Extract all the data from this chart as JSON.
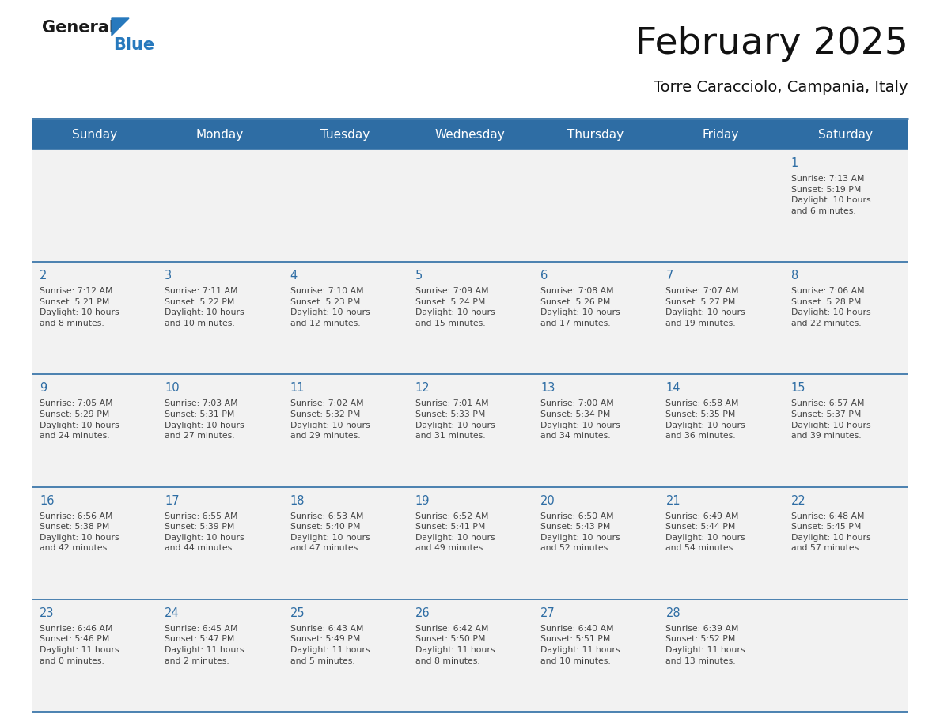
{
  "title": "February 2025",
  "subtitle": "Torre Caracciolo, Campania, Italy",
  "days_of_week": [
    "Sunday",
    "Monday",
    "Tuesday",
    "Wednesday",
    "Thursday",
    "Friday",
    "Saturday"
  ],
  "header_bg": "#2E6DA4",
  "header_text": "#FFFFFF",
  "cell_bg_even": "#F2F2F2",
  "cell_bg_odd": "#FFFFFF",
  "border_color": "#2E6DA4",
  "day_num_color": "#2E6DA4",
  "text_color": "#444444",
  "logo_general_color": "#1a1a1a",
  "logo_blue_color": "#2779BD",
  "weeks": [
    [
      {
        "day": null,
        "info": null
      },
      {
        "day": null,
        "info": null
      },
      {
        "day": null,
        "info": null
      },
      {
        "day": null,
        "info": null
      },
      {
        "day": null,
        "info": null
      },
      {
        "day": null,
        "info": null
      },
      {
        "day": 1,
        "info": "Sunrise: 7:13 AM\nSunset: 5:19 PM\nDaylight: 10 hours\nand 6 minutes."
      }
    ],
    [
      {
        "day": 2,
        "info": "Sunrise: 7:12 AM\nSunset: 5:21 PM\nDaylight: 10 hours\nand 8 minutes."
      },
      {
        "day": 3,
        "info": "Sunrise: 7:11 AM\nSunset: 5:22 PM\nDaylight: 10 hours\nand 10 minutes."
      },
      {
        "day": 4,
        "info": "Sunrise: 7:10 AM\nSunset: 5:23 PM\nDaylight: 10 hours\nand 12 minutes."
      },
      {
        "day": 5,
        "info": "Sunrise: 7:09 AM\nSunset: 5:24 PM\nDaylight: 10 hours\nand 15 minutes."
      },
      {
        "day": 6,
        "info": "Sunrise: 7:08 AM\nSunset: 5:26 PM\nDaylight: 10 hours\nand 17 minutes."
      },
      {
        "day": 7,
        "info": "Sunrise: 7:07 AM\nSunset: 5:27 PM\nDaylight: 10 hours\nand 19 minutes."
      },
      {
        "day": 8,
        "info": "Sunrise: 7:06 AM\nSunset: 5:28 PM\nDaylight: 10 hours\nand 22 minutes."
      }
    ],
    [
      {
        "day": 9,
        "info": "Sunrise: 7:05 AM\nSunset: 5:29 PM\nDaylight: 10 hours\nand 24 minutes."
      },
      {
        "day": 10,
        "info": "Sunrise: 7:03 AM\nSunset: 5:31 PM\nDaylight: 10 hours\nand 27 minutes."
      },
      {
        "day": 11,
        "info": "Sunrise: 7:02 AM\nSunset: 5:32 PM\nDaylight: 10 hours\nand 29 minutes."
      },
      {
        "day": 12,
        "info": "Sunrise: 7:01 AM\nSunset: 5:33 PM\nDaylight: 10 hours\nand 31 minutes."
      },
      {
        "day": 13,
        "info": "Sunrise: 7:00 AM\nSunset: 5:34 PM\nDaylight: 10 hours\nand 34 minutes."
      },
      {
        "day": 14,
        "info": "Sunrise: 6:58 AM\nSunset: 5:35 PM\nDaylight: 10 hours\nand 36 minutes."
      },
      {
        "day": 15,
        "info": "Sunrise: 6:57 AM\nSunset: 5:37 PM\nDaylight: 10 hours\nand 39 minutes."
      }
    ],
    [
      {
        "day": 16,
        "info": "Sunrise: 6:56 AM\nSunset: 5:38 PM\nDaylight: 10 hours\nand 42 minutes."
      },
      {
        "day": 17,
        "info": "Sunrise: 6:55 AM\nSunset: 5:39 PM\nDaylight: 10 hours\nand 44 minutes."
      },
      {
        "day": 18,
        "info": "Sunrise: 6:53 AM\nSunset: 5:40 PM\nDaylight: 10 hours\nand 47 minutes."
      },
      {
        "day": 19,
        "info": "Sunrise: 6:52 AM\nSunset: 5:41 PM\nDaylight: 10 hours\nand 49 minutes."
      },
      {
        "day": 20,
        "info": "Sunrise: 6:50 AM\nSunset: 5:43 PM\nDaylight: 10 hours\nand 52 minutes."
      },
      {
        "day": 21,
        "info": "Sunrise: 6:49 AM\nSunset: 5:44 PM\nDaylight: 10 hours\nand 54 minutes."
      },
      {
        "day": 22,
        "info": "Sunrise: 6:48 AM\nSunset: 5:45 PM\nDaylight: 10 hours\nand 57 minutes."
      }
    ],
    [
      {
        "day": 23,
        "info": "Sunrise: 6:46 AM\nSunset: 5:46 PM\nDaylight: 11 hours\nand 0 minutes."
      },
      {
        "day": 24,
        "info": "Sunrise: 6:45 AM\nSunset: 5:47 PM\nDaylight: 11 hours\nand 2 minutes."
      },
      {
        "day": 25,
        "info": "Sunrise: 6:43 AM\nSunset: 5:49 PM\nDaylight: 11 hours\nand 5 minutes."
      },
      {
        "day": 26,
        "info": "Sunrise: 6:42 AM\nSunset: 5:50 PM\nDaylight: 11 hours\nand 8 minutes."
      },
      {
        "day": 27,
        "info": "Sunrise: 6:40 AM\nSunset: 5:51 PM\nDaylight: 11 hours\nand 10 minutes."
      },
      {
        "day": 28,
        "info": "Sunrise: 6:39 AM\nSunset: 5:52 PM\nDaylight: 11 hours\nand 13 minutes."
      },
      {
        "day": null,
        "info": null
      }
    ]
  ]
}
